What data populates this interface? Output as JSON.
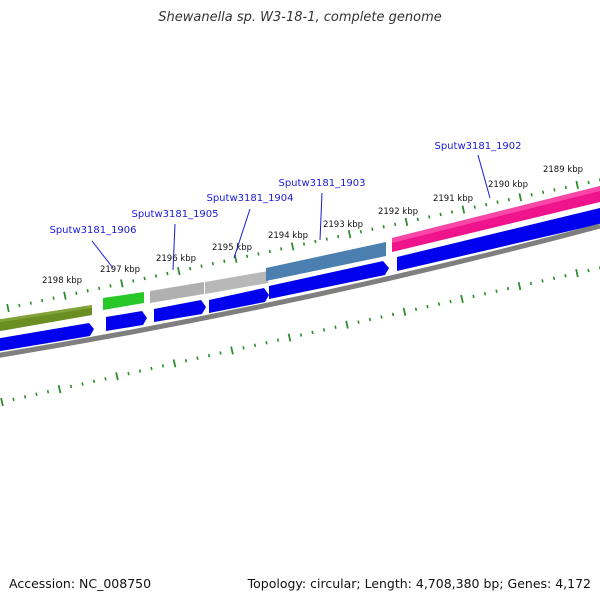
{
  "header": {
    "title": "Shewanella sp. W3-18-1, complete genome"
  },
  "footer": {
    "accession": "Accession: NC_008750",
    "summary": "Topology: circular; Length: 4,708,380 bp; Genes: 4,172"
  },
  "ticks": [
    "2198 kbp",
    "2197 kbp",
    "2196 kbp",
    "2195 kbp",
    "2194 kbp",
    "2193 kbp",
    "2192 kbp",
    "2191 kbp",
    "2190 kbp",
    "2189 kbp"
  ],
  "genes": [
    {
      "name": "Sputw3181_1906",
      "color": "#28c828"
    },
    {
      "name": "Sputw3181_1905",
      "color": "#b0b0b0"
    },
    {
      "name": "Sputw3181_1904",
      "color": "#b8b8b8"
    },
    {
      "name": "Sputw3181_1903",
      "color": "#4a7fb0"
    },
    {
      "name": "Sputw3181_1902",
      "color": "#f0148c"
    }
  ],
  "colors": {
    "olive_gene": "#6b8e23",
    "cds": "#0000ee",
    "backbone": "#7f7f7f",
    "tick": "#2e8b2e"
  }
}
